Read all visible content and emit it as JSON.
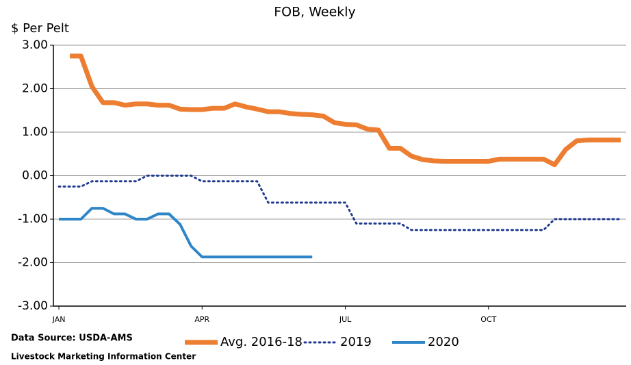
{
  "chart_data": {
    "type": "line",
    "title": "FOB, Weekly",
    "y_label": "$ Per Pelt",
    "source": "Data Source:  USDA-AMS",
    "credit": "Livestock Marketing Information Center",
    "x": [
      1,
      2,
      3,
      4,
      5,
      6,
      7,
      8,
      9,
      10,
      11,
      12,
      13,
      14,
      15,
      16,
      17,
      18,
      19,
      20,
      21,
      22,
      23,
      24,
      25,
      26,
      27,
      28,
      29,
      30,
      31,
      32,
      33,
      34,
      35,
      36,
      37,
      38,
      39,
      40,
      41,
      42,
      43,
      44,
      45,
      46,
      47,
      48,
      49,
      50,
      51,
      52
    ],
    "xlim": [
      0.5,
      52.5
    ],
    "xticks": [
      {
        "value": 1,
        "label": "JAN"
      },
      {
        "value": 14,
        "label": "APR"
      },
      {
        "value": 27,
        "label": "JUL"
      },
      {
        "value": 40,
        "label": "OCT"
      }
    ],
    "ylim": [
      -3,
      3
    ],
    "yticks": [
      {
        "value": -3,
        "label": "-3.00"
      },
      {
        "value": -2,
        "label": "-2.00"
      },
      {
        "value": -1,
        "label": "-1.00"
      },
      {
        "value": 0,
        "label": "0.00"
      },
      {
        "value": 1,
        "label": "1.00"
      },
      {
        "value": 2,
        "label": "2.00"
      },
      {
        "value": 3,
        "label": "3.00"
      }
    ],
    "grid": true,
    "series": [
      {
        "name": "Avg. 2016-18",
        "color": "#ed7d31",
        "style": "solid",
        "width": 7,
        "values": [
          null,
          2.75,
          2.75,
          2.05,
          1.68,
          1.68,
          1.62,
          1.65,
          1.65,
          1.62,
          1.62,
          1.53,
          1.52,
          1.52,
          1.55,
          1.55,
          1.65,
          1.58,
          1.53,
          1.47,
          1.47,
          1.43,
          1.41,
          1.4,
          1.37,
          1.22,
          1.18,
          1.17,
          1.07,
          1.05,
          0.63,
          0.63,
          0.45,
          0.37,
          0.34,
          0.33,
          0.33,
          0.33,
          0.33,
          0.33,
          0.38,
          0.38,
          0.38,
          0.38,
          0.38,
          0.25,
          0.6,
          0.8,
          0.82,
          0.82,
          0.82,
          0.82
        ]
      },
      {
        "name": "2019",
        "color": "#1f3a8f",
        "style": "dotted",
        "width": 3,
        "values": [
          -0.25,
          -0.25,
          -0.25,
          -0.13,
          -0.13,
          -0.13,
          -0.13,
          -0.13,
          0,
          0,
          0,
          0,
          0,
          -0.13,
          -0.13,
          -0.13,
          -0.13,
          -0.13,
          -0.13,
          -0.62,
          -0.62,
          -0.62,
          -0.62,
          -0.62,
          -0.62,
          -0.62,
          -0.62,
          -1.1,
          -1.1,
          -1.1,
          -1.1,
          -1.1,
          -1.25,
          -1.25,
          -1.25,
          -1.25,
          -1.25,
          -1.25,
          -1.25,
          -1.25,
          -1.25,
          -1.25,
          -1.25,
          -1.25,
          -1.25,
          -1,
          -1,
          -1,
          -1,
          -1,
          -1,
          -1
        ]
      },
      {
        "name": "2020",
        "color": "#2e86c8",
        "style": "solid",
        "width": 4,
        "values": [
          -1,
          -1,
          -1,
          -0.75,
          -0.75,
          -0.88,
          -0.88,
          -1,
          -1,
          -0.88,
          -0.88,
          -1.12,
          -1.62,
          -1.87,
          -1.87,
          -1.87,
          -1.87,
          -1.87,
          -1.87,
          -1.87,
          -1.87,
          -1.87,
          -1.87,
          -1.87,
          null,
          null,
          null,
          null,
          null,
          null,
          null,
          null,
          null,
          null,
          null,
          null,
          null,
          null,
          null,
          null,
          null,
          null,
          null,
          null,
          null,
          null,
          null,
          null,
          null,
          null,
          null,
          null
        ]
      }
    ]
  }
}
